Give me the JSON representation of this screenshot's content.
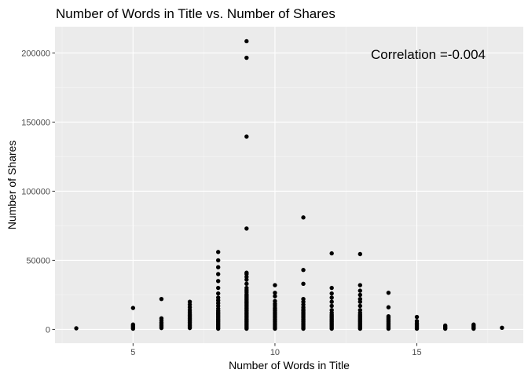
{
  "chart_data": {
    "type": "scatter",
    "title": "Number of Words in Title vs. Number of Shares",
    "xlabel": "Number of Words in Title",
    "ylabel": "Number of Shares",
    "xlim": [
      2.25,
      18.75
    ],
    "ylim": [
      -10000,
      219000
    ],
    "x_ticks": [
      5,
      10,
      15
    ],
    "x_tick_labels": [
      "5",
      "10",
      "15"
    ],
    "y_ticks": [
      0,
      50000,
      100000,
      150000,
      200000
    ],
    "y_tick_labels": [
      "0",
      "50000",
      "100000",
      "150000",
      "200000"
    ],
    "grid": true,
    "annotation": {
      "text": "Correlation =-0.004",
      "x": 15.4,
      "y": 199000
    },
    "points": [
      [
        3,
        800
      ],
      [
        5,
        500
      ],
      [
        5,
        1500
      ],
      [
        5,
        2500
      ],
      [
        5,
        3500
      ],
      [
        5,
        15500
      ],
      [
        6,
        1000
      ],
      [
        6,
        2000
      ],
      [
        6,
        3000
      ],
      [
        6,
        4000
      ],
      [
        6,
        5000
      ],
      [
        6,
        6500
      ],
      [
        6,
        8000
      ],
      [
        6,
        22000
      ],
      [
        7,
        1000
      ],
      [
        7,
        2000
      ],
      [
        7,
        3000
      ],
      [
        7,
        4000
      ],
      [
        7,
        5000
      ],
      [
        7,
        6000
      ],
      [
        7,
        7000
      ],
      [
        7,
        8000
      ],
      [
        7,
        9000
      ],
      [
        7,
        10000
      ],
      [
        7,
        11000
      ],
      [
        7,
        12500
      ],
      [
        7,
        14000
      ],
      [
        7,
        16000
      ],
      [
        7,
        18000
      ],
      [
        7,
        20000
      ],
      [
        8,
        500
      ],
      [
        8,
        1500
      ],
      [
        8,
        2500
      ],
      [
        8,
        3500
      ],
      [
        8,
        4500
      ],
      [
        8,
        5500
      ],
      [
        8,
        6500
      ],
      [
        8,
        7500
      ],
      [
        8,
        8500
      ],
      [
        8,
        9500
      ],
      [
        8,
        10500
      ],
      [
        8,
        11500
      ],
      [
        8,
        12500
      ],
      [
        8,
        13500
      ],
      [
        8,
        15000
      ],
      [
        8,
        17000
      ],
      [
        8,
        19000
      ],
      [
        8,
        21000
      ],
      [
        8,
        23000
      ],
      [
        8,
        26000
      ],
      [
        8,
        30000
      ],
      [
        8,
        35000
      ],
      [
        8,
        40000
      ],
      [
        8,
        45000
      ],
      [
        8,
        50000
      ],
      [
        8,
        56000
      ],
      [
        9,
        500
      ],
      [
        9,
        1500
      ],
      [
        9,
        2500
      ],
      [
        9,
        3500
      ],
      [
        9,
        4500
      ],
      [
        9,
        5500
      ],
      [
        9,
        6500
      ],
      [
        9,
        7500
      ],
      [
        9,
        8500
      ],
      [
        9,
        9500
      ],
      [
        9,
        10500
      ],
      [
        9,
        11500
      ],
      [
        9,
        12500
      ],
      [
        9,
        13500
      ],
      [
        9,
        14500
      ],
      [
        9,
        15500
      ],
      [
        9,
        16500
      ],
      [
        9,
        17500
      ],
      [
        9,
        18500
      ],
      [
        9,
        19500
      ],
      [
        9,
        20500
      ],
      [
        9,
        21500
      ],
      [
        9,
        22500
      ],
      [
        9,
        23500
      ],
      [
        9,
        24500
      ],
      [
        9,
        25500
      ],
      [
        9,
        27000
      ],
      [
        9,
        28500
      ],
      [
        9,
        30000
      ],
      [
        9,
        33000
      ],
      [
        9,
        36000
      ],
      [
        9,
        38000
      ],
      [
        9,
        40000
      ],
      [
        9,
        41000
      ],
      [
        9,
        73000
      ],
      [
        9,
        139500
      ],
      [
        9,
        196500
      ],
      [
        9,
        208500
      ],
      [
        10,
        500
      ],
      [
        10,
        1500
      ],
      [
        10,
        2500
      ],
      [
        10,
        3500
      ],
      [
        10,
        4500
      ],
      [
        10,
        5500
      ],
      [
        10,
        6500
      ],
      [
        10,
        7500
      ],
      [
        10,
        8500
      ],
      [
        10,
        9500
      ],
      [
        10,
        10500
      ],
      [
        10,
        11500
      ],
      [
        10,
        12500
      ],
      [
        10,
        13500
      ],
      [
        10,
        14500
      ],
      [
        10,
        15500
      ],
      [
        10,
        17000
      ],
      [
        10,
        18500
      ],
      [
        10,
        20500
      ],
      [
        10,
        24000
      ],
      [
        10,
        26500
      ],
      [
        10,
        32000
      ],
      [
        11,
        500
      ],
      [
        11,
        1500
      ],
      [
        11,
        2500
      ],
      [
        11,
        3500
      ],
      [
        11,
        4500
      ],
      [
        11,
        5500
      ],
      [
        11,
        6500
      ],
      [
        11,
        7500
      ],
      [
        11,
        8500
      ],
      [
        11,
        9500
      ],
      [
        11,
        10500
      ],
      [
        11,
        11500
      ],
      [
        11,
        12500
      ],
      [
        11,
        13500
      ],
      [
        11,
        14500
      ],
      [
        11,
        16000
      ],
      [
        11,
        18000
      ],
      [
        11,
        20000
      ],
      [
        11,
        22000
      ],
      [
        11,
        33000
      ],
      [
        11,
        43000
      ],
      [
        11,
        81000
      ],
      [
        12,
        500
      ],
      [
        12,
        1500
      ],
      [
        12,
        2500
      ],
      [
        12,
        3500
      ],
      [
        12,
        4500
      ],
      [
        12,
        5500
      ],
      [
        12,
        6500
      ],
      [
        12,
        7500
      ],
      [
        12,
        8500
      ],
      [
        12,
        9500
      ],
      [
        12,
        10500
      ],
      [
        12,
        12000
      ],
      [
        12,
        14000
      ],
      [
        12,
        17000
      ],
      [
        12,
        20000
      ],
      [
        12,
        23000
      ],
      [
        12,
        26000
      ],
      [
        12,
        30000
      ],
      [
        12,
        55000
      ],
      [
        13,
        500
      ],
      [
        13,
        1500
      ],
      [
        13,
        2500
      ],
      [
        13,
        3500
      ],
      [
        13,
        4500
      ],
      [
        13,
        5500
      ],
      [
        13,
        6500
      ],
      [
        13,
        7500
      ],
      [
        13,
        8500
      ],
      [
        13,
        9500
      ],
      [
        13,
        10500
      ],
      [
        13,
        12000
      ],
      [
        13,
        14000
      ],
      [
        13,
        17000
      ],
      [
        13,
        20000
      ],
      [
        13,
        22000
      ],
      [
        13,
        25000
      ],
      [
        13,
        28000
      ],
      [
        13,
        32000
      ],
      [
        13,
        54500
      ],
      [
        14,
        500
      ],
      [
        14,
        1500
      ],
      [
        14,
        2500
      ],
      [
        14,
        3500
      ],
      [
        14,
        4500
      ],
      [
        14,
        5500
      ],
      [
        14,
        6500
      ],
      [
        14,
        7500
      ],
      [
        14,
        8500
      ],
      [
        14,
        9500
      ],
      [
        14,
        16000
      ],
      [
        14,
        26500
      ],
      [
        15,
        500
      ],
      [
        15,
        1500
      ],
      [
        15,
        2500
      ],
      [
        15,
        3500
      ],
      [
        15,
        4500
      ],
      [
        15,
        6000
      ],
      [
        15,
        9000
      ],
      [
        16,
        500
      ],
      [
        16,
        1200
      ],
      [
        16,
        2000
      ],
      [
        16,
        2800
      ],
      [
        17,
        500
      ],
      [
        17,
        1200
      ],
      [
        17,
        2000
      ],
      [
        17,
        2800
      ],
      [
        17,
        3500
      ],
      [
        18,
        1200
      ]
    ]
  }
}
